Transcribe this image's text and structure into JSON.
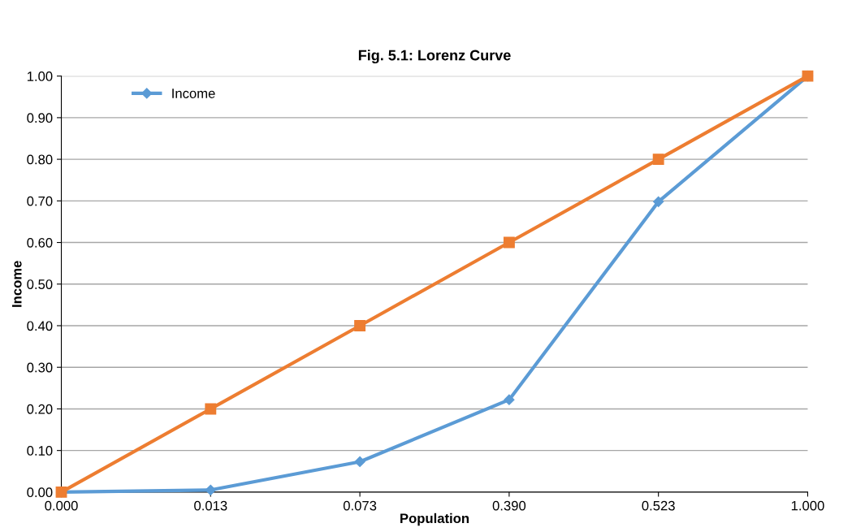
{
  "chart_data": {
    "type": "line",
    "title": "Fig. 5.1: Lorenz Curve",
    "xlabel": "Population",
    "ylabel": "Income",
    "categories": [
      "0.000",
      "0.013",
      "0.073",
      "0.390",
      "0.523",
      "1.000"
    ],
    "series": [
      {
        "name": "Income",
        "color": "#5b9bd5",
        "marker": "diamond",
        "values": [
          0,
          0.005,
          0.073,
          0.222,
          0.698,
          1.0
        ]
      },
      {
        "color": "#ed7d31",
        "marker": "square",
        "values": [
          0,
          0.2,
          0.4,
          0.6,
          0.8,
          1.0
        ]
      }
    ],
    "ylim": [
      0,
      1
    ],
    "yticks": [
      {
        "value": 0,
        "label": "0.00"
      },
      {
        "value": 0.1,
        "label": "0.10"
      },
      {
        "value": 0.2,
        "label": "0.20"
      },
      {
        "value": 0.3,
        "label": "0.30"
      },
      {
        "value": 0.4,
        "label": "0.40"
      },
      {
        "value": 0.5,
        "label": "0.50"
      },
      {
        "value": 0.6,
        "label": "0.60"
      },
      {
        "value": 0.7,
        "label": "0.70"
      },
      {
        "value": 0.8,
        "label": "0.80"
      },
      {
        "value": 0.9,
        "label": "0.90"
      },
      {
        "value": 1,
        "label": "1.00"
      }
    ],
    "grid": "y",
    "legend": "top left",
    "line_style": "solid"
  }
}
